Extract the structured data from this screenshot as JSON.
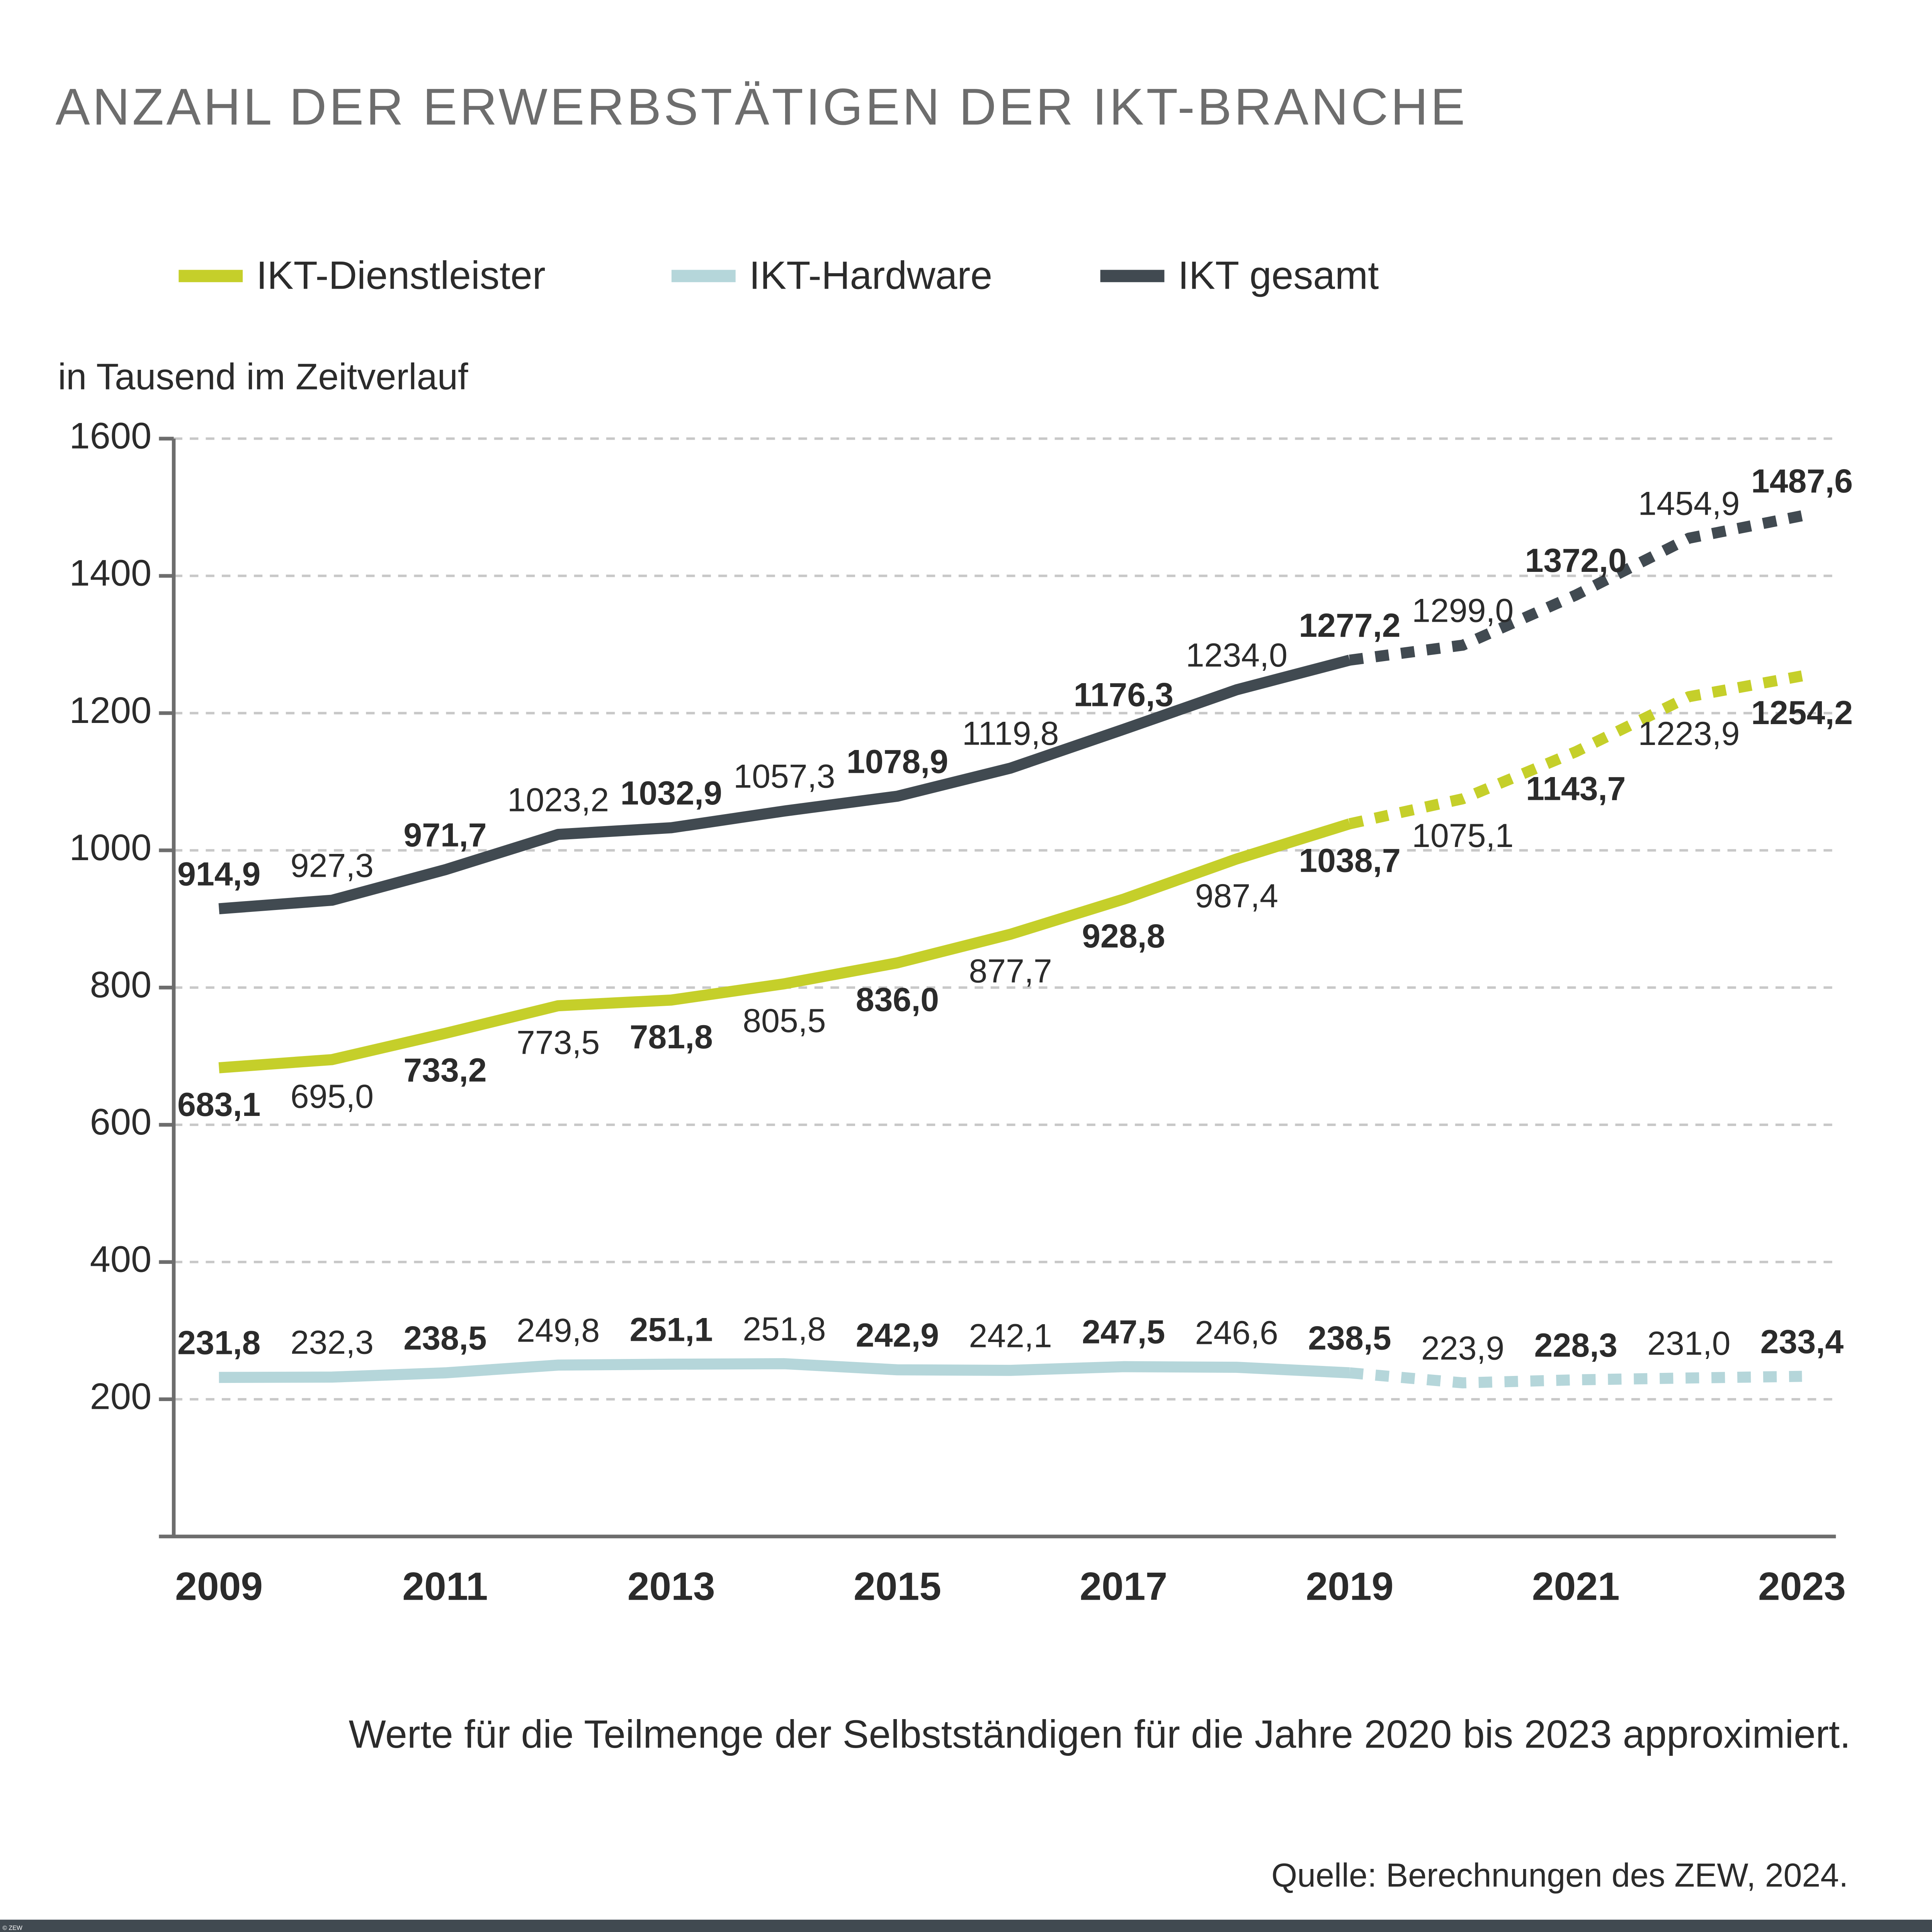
{
  "chart_data": {
    "type": "line",
    "title": "ANZAHL DER ERWERBSTÄTIGEN DER IKT-BRANCHE",
    "y_label": "in Tausend im Zeitverlauf",
    "note": "Werte für die Teilmenge der Selbstständigen für die Jahre 2020 bis 2023 approximiert.",
    "source": "Quelle: Berechnungen des ZEW, 2024.",
    "copyright": "© ZEW",
    "x": [
      2009,
      2010,
      2011,
      2012,
      2013,
      2014,
      2015,
      2016,
      2017,
      2018,
      2019,
      2020,
      2021,
      2022,
      2023
    ],
    "xlim": [
      2008.6,
      2023.3
    ],
    "xticks": [
      2009,
      2011,
      2013,
      2015,
      2017,
      2019,
      2021,
      2023
    ],
    "ylim": [
      0,
      1600
    ],
    "yticks": [
      200,
      400,
      600,
      800,
      1000,
      1200,
      1400,
      1600
    ],
    "grid": true,
    "dashed_from_x": 2019,
    "legend": "top",
    "series": [
      {
        "name": "IKT-Dienstleister",
        "color": "#c5cf2a",
        "label_position": "below",
        "values": [
          683.1,
          695.0,
          733.2,
          773.5,
          781.8,
          805.5,
          836.0,
          877.7,
          928.8,
          987.4,
          1038.7,
          1075.1,
          1143.7,
          1223.9,
          1254.2
        ],
        "value_labels": [
          "683,1",
          "695,0",
          "733,2",
          "773,5",
          "781,8",
          "805,5",
          "836,0",
          "877,7",
          "928,8",
          "987,4",
          "1038,7",
          "1075,1",
          "1143,7",
          "1223,9",
          "1254,2"
        ]
      },
      {
        "name": "IKT-Hardware",
        "color": "#b5d6da",
        "label_position": "above",
        "values": [
          231.8,
          232.3,
          238.5,
          249.8,
          251.1,
          251.8,
          242.9,
          242.1,
          247.5,
          246.6,
          238.5,
          223.9,
          228.3,
          231.0,
          233.4
        ],
        "value_labels": [
          "231,8",
          "232,3",
          "238,5",
          "249,8",
          "251,1",
          "251,8",
          "242,9",
          "242,1",
          "247,5",
          "246,6",
          "238,5",
          "223,9",
          "228,3",
          "231,0",
          "233,4"
        ]
      },
      {
        "name": "IKT gesamt",
        "color": "#414a51",
        "label_position": "above",
        "values": [
          914.9,
          927.3,
          971.7,
          1023.2,
          1032.9,
          1057.3,
          1078.9,
          1119.8,
          1176.3,
          1234.0,
          1277.2,
          1299.0,
          1372.0,
          1454.9,
          1487.6
        ],
        "value_labels": [
          "914,9",
          "927,3",
          "971,7",
          "1023,2",
          "1032,9",
          "1057,3",
          "1078,9",
          "1119,8",
          "1176,3",
          "1234,0",
          "1277,2",
          "1299,0",
          "1372,0",
          "1454,9",
          "1487,6"
        ]
      }
    ]
  }
}
